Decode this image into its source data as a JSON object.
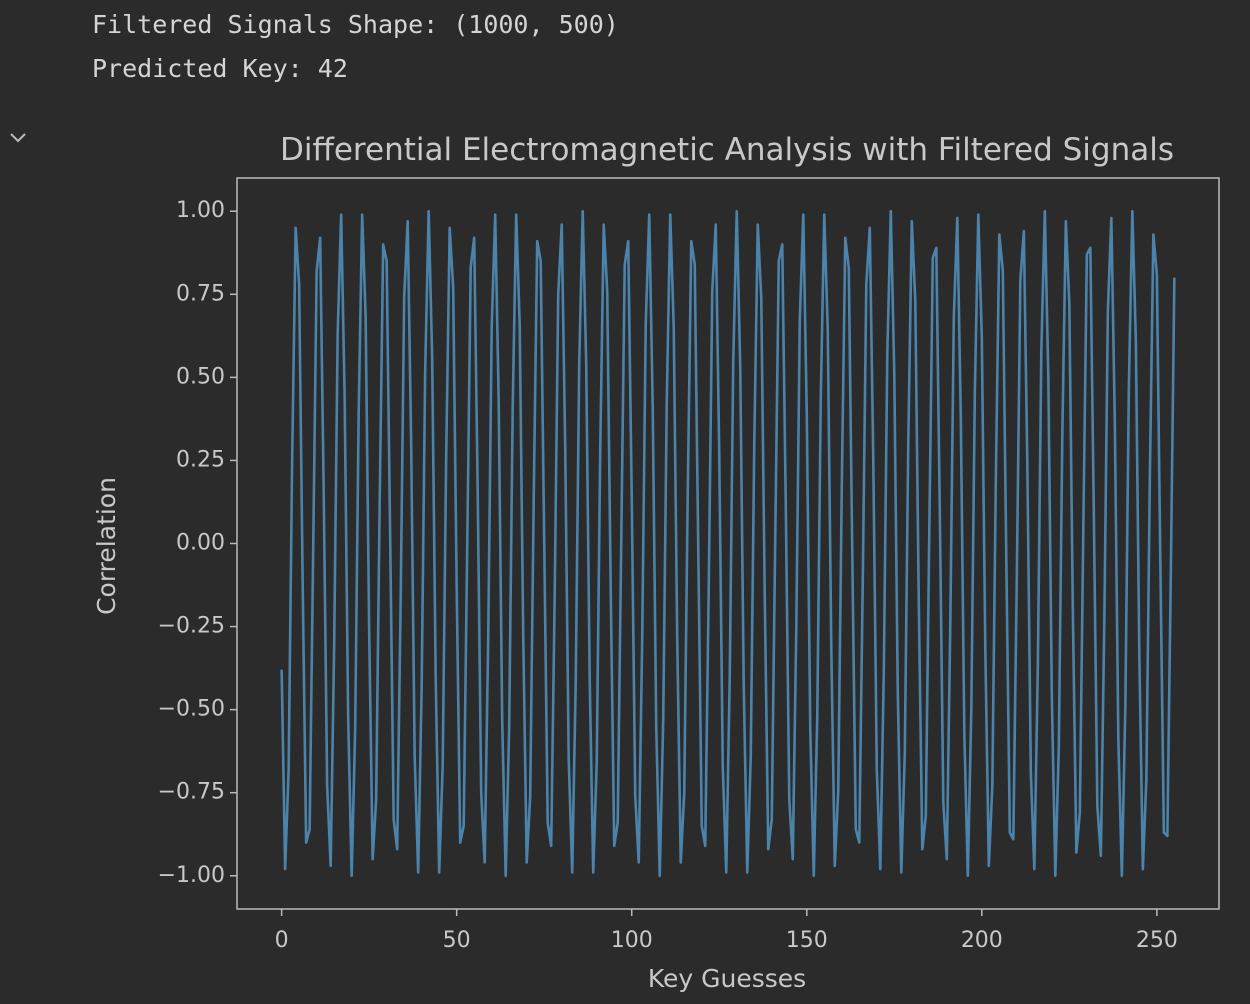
{
  "output_lines": [
    "Filtered Signals Shape: (1000, 500)",
    "Predicted Key: 42"
  ],
  "chart_data": {
    "type": "line",
    "title": "Differential Electromagnetic Analysis with Filtered Signals",
    "xlabel": "Key Guesses",
    "ylabel": "Correlation",
    "color": "#4f8db8",
    "x": [
      0,
      1,
      2,
      3,
      4,
      5,
      6,
      7,
      8,
      9,
      10,
      11,
      12,
      13,
      14,
      15,
      16,
      17,
      18,
      19,
      20,
      21,
      22,
      23,
      24,
      25,
      26,
      27,
      28,
      29,
      30,
      31,
      32,
      33,
      34,
      35,
      36,
      37,
      38,
      39,
      40,
      41,
      42,
      43,
      44,
      45,
      46,
      47,
      48,
      49,
      50,
      51,
      52,
      53,
      54,
      55,
      56,
      57,
      58,
      59,
      60,
      61,
      62,
      63,
      64,
      65,
      66,
      67,
      68,
      69,
      70,
      71,
      72,
      73,
      74,
      75,
      76,
      77,
      78,
      79,
      80,
      81,
      82,
      83,
      84,
      85,
      86,
      87,
      88,
      89,
      90,
      91,
      92,
      93,
      94,
      95,
      96,
      97,
      98,
      99,
      100,
      101,
      102,
      103,
      104,
      105,
      106,
      107,
      108,
      109,
      110,
      111,
      112,
      113,
      114,
      115,
      116,
      117,
      118,
      119,
      120,
      121,
      122,
      123,
      124,
      125,
      126,
      127,
      128,
      129,
      130,
      131,
      132,
      133,
      134,
      135,
      136,
      137,
      138,
      139,
      140,
      141,
      142,
      143,
      144,
      145,
      146,
      147,
      148,
      149,
      150,
      151,
      152,
      153,
      154,
      155,
      156,
      157,
      158,
      159,
      160,
      161,
      162,
      163,
      164,
      165,
      166,
      167,
      168,
      169,
      170,
      171,
      172,
      173,
      174,
      175,
      176,
      177,
      178,
      179,
      180,
      181,
      182,
      183,
      184,
      185,
      186,
      187,
      188,
      189,
      190,
      191,
      192,
      193,
      194,
      195,
      196,
      197,
      198,
      199,
      200,
      201,
      202,
      203,
      204,
      205,
      206,
      207,
      208,
      209,
      210,
      211,
      212,
      213,
      214,
      215,
      216,
      217,
      218,
      219,
      220,
      221,
      222,
      223,
      224,
      225,
      226,
      227,
      228,
      229,
      230,
      231,
      232,
      233,
      234,
      235,
      236,
      237,
      238,
      239,
      240,
      241,
      242,
      243,
      244,
      245,
      246,
      247,
      248,
      249,
      250,
      251,
      252,
      253,
      254,
      255
    ],
    "values": [
      -0.38,
      -0.98,
      -0.68,
      0.25,
      0.95,
      0.78,
      -0.11,
      -0.9,
      -0.86,
      -0.03,
      0.82,
      0.92,
      0.17,
      -0.73,
      -0.97,
      -0.31,
      0.63,
      0.99,
      0.44,
      -0.52,
      -1.0,
      -0.56,
      0.39,
      0.99,
      0.68,
      -0.26,
      -0.95,
      -0.77,
      0.12,
      0.9,
      0.85,
      0.02,
      -0.83,
      -0.92,
      -0.17,
      0.74,
      0.97,
      0.3,
      -0.64,
      -0.99,
      -0.43,
      0.52,
      1.0,
      0.56,
      -0.4,
      -0.99,
      -0.67,
      0.26,
      0.95,
      0.77,
      -0.13,
      -0.9,
      -0.85,
      -0.02,
      0.83,
      0.92,
      0.16,
      -0.75,
      -0.96,
      -0.29,
      0.65,
      0.99,
      0.43,
      -0.53,
      -1.0,
      -0.55,
      0.41,
      0.99,
      0.66,
      -0.27,
      -0.96,
      -0.76,
      0.13,
      0.91,
      0.85,
      0.01,
      -0.84,
      -0.91,
      -0.15,
      0.75,
      0.96,
      0.29,
      -0.65,
      -0.99,
      -0.42,
      0.54,
      1.0,
      0.54,
      -0.41,
      -0.99,
      -0.66,
      0.28,
      0.96,
      0.76,
      -0.14,
      -0.91,
      -0.84,
      0.0,
      0.84,
      0.91,
      0.14,
      -0.76,
      -0.96,
      -0.28,
      0.66,
      0.99,
      0.41,
      -0.55,
      -1.0,
      -0.53,
      0.42,
      0.99,
      0.65,
      -0.29,
      -0.96,
      -0.75,
      0.15,
      0.91,
      0.84,
      -0.01,
      -0.85,
      -0.91,
      -0.13,
      0.76,
      0.96,
      0.27,
      -0.67,
      -0.99,
      -0.4,
      0.55,
      1.0,
      0.53,
      -0.43,
      -0.99,
      -0.64,
      0.3,
      0.96,
      0.74,
      -0.16,
      -0.92,
      -0.83,
      0.02,
      0.85,
      0.9,
      0.12,
      -0.77,
      -0.95,
      -0.26,
      0.67,
      0.99,
      0.39,
      -0.56,
      -1.0,
      -0.52,
      0.44,
      0.99,
      0.64,
      -0.31,
      -0.97,
      -0.74,
      0.17,
      0.92,
      0.83,
      -0.03,
      -0.86,
      -0.9,
      -0.11,
      0.78,
      0.95,
      0.25,
      -0.68,
      -0.98,
      -0.39,
      0.57,
      1.0,
      0.51,
      -0.45,
      -0.99,
      -0.63,
      0.31,
      0.97,
      0.73,
      -0.18,
      -0.92,
      -0.82,
      0.04,
      0.86,
      0.89,
      0.1,
      -0.78,
      -0.95,
      -0.24,
      0.68,
      0.98,
      0.38,
      -0.57,
      -1.0,
      -0.5,
      0.45,
      0.99,
      0.62,
      -0.32,
      -0.97,
      -0.73,
      0.19,
      0.93,
      0.82,
      -0.05,
      -0.87,
      -0.89,
      -0.1,
      0.79,
      0.94,
      0.24,
      -0.69,
      -0.98,
      -0.37,
      0.58,
      1.0,
      0.5,
      -0.46,
      -1.0,
      -0.61,
      0.33,
      0.97,
      0.72,
      -0.2,
      -0.93,
      -0.81,
      0.05,
      0.87,
      0.89,
      0.09,
      -0.79,
      -0.94,
      -0.23,
      0.7,
      0.98,
      0.36,
      -0.59,
      -1.0,
      -0.49,
      0.47,
      1.0,
      0.61,
      -0.34,
      -0.98,
      -0.71,
      0.2,
      0.93,
      0.81,
      -0.06,
      -0.87,
      -0.88,
      -0.08,
      0.8
    ],
    "xlim": [
      -12.75,
      267.75
    ],
    "xticks": [
      0,
      50,
      100,
      150,
      200,
      250
    ],
    "ylim": [
      -1.1,
      1.1
    ],
    "yticks": [
      {
        "value": -1.0,
        "label": "−1.00"
      },
      {
        "value": -0.75,
        "label": "−0.75"
      },
      {
        "value": -0.5,
        "label": "−0.50"
      },
      {
        "value": -0.25,
        "label": "−0.25"
      },
      {
        "value": 0,
        "label": "0.00"
      },
      {
        "value": 0.25,
        "label": "0.25"
      },
      {
        "value": 0.5,
        "label": "0.50"
      },
      {
        "value": 0.75,
        "label": "0.75"
      },
      {
        "value": 1.0,
        "label": "1.00"
      }
    ],
    "grid": false
  }
}
